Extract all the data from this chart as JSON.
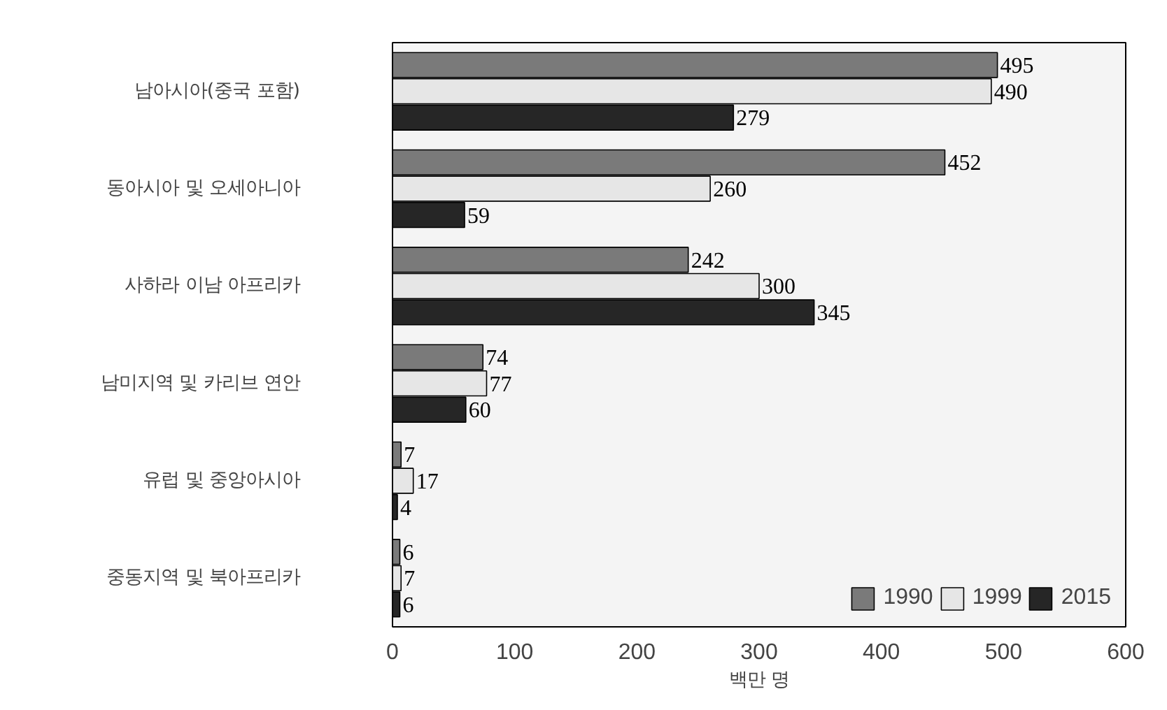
{
  "chart_data": {
    "type": "bar",
    "orientation": "horizontal",
    "xlabel": "백만 명",
    "categories": [
      "남아시아(중국 포함)",
      "동아시아 및 오세아니아",
      "사하라 이남 아프리카",
      "남미지역 및 카리브 연안",
      "유럽 및 중앙아시아",
      "중동지역 및 북아프리카"
    ],
    "series": [
      {
        "name": "1990",
        "color": "#7a7a7a",
        "values": [
          495,
          452,
          242,
          74,
          7,
          6
        ]
      },
      {
        "name": "1999",
        "color": "#e6e6e6",
        "values": [
          490,
          260,
          300,
          77,
          17,
          7
        ]
      },
      {
        "name": "2015",
        "color": "#262626",
        "values": [
          279,
          59,
          345,
          60,
          4,
          6
        ]
      }
    ],
    "xlim": [
      0,
      600
    ],
    "xticks": [
      0,
      100,
      200,
      300,
      400,
      500,
      600
    ],
    "data_labels": true,
    "grid": false,
    "legend": "bottom right"
  }
}
